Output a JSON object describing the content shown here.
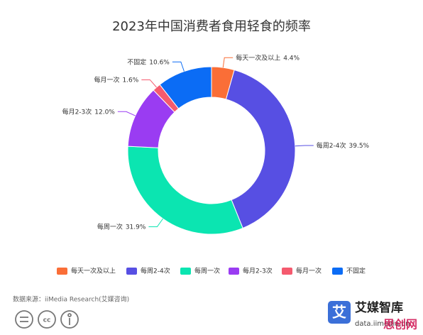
{
  "chart_data": {
    "type": "donut",
    "title": "2023年中国消费者食用轻食的频率",
    "categories": [
      "每天一次及以上",
      "每周2-4次",
      "每周一次",
      "每月2-3次",
      "每月一次",
      "不固定"
    ],
    "values": [
      4.4,
      39.5,
      31.9,
      12.0,
      1.6,
      10.6
    ],
    "value_labels": [
      "4.4%",
      "39.5%",
      "31.9%",
      "12.0%",
      "1.6%",
      "10.6%"
    ],
    "colors": [
      "#fa6e37",
      "#574fe3",
      "#0be5b1",
      "#9a3cf2",
      "#f55a6e",
      "#0b6cf5"
    ],
    "legend": "bottom",
    "source": "数据来源：iiMedia Research(艾媒咨询)",
    "brand": "艾媒智库",
    "brand_url": "data.iimedia.cn",
    "watermark": "思创网"
  }
}
